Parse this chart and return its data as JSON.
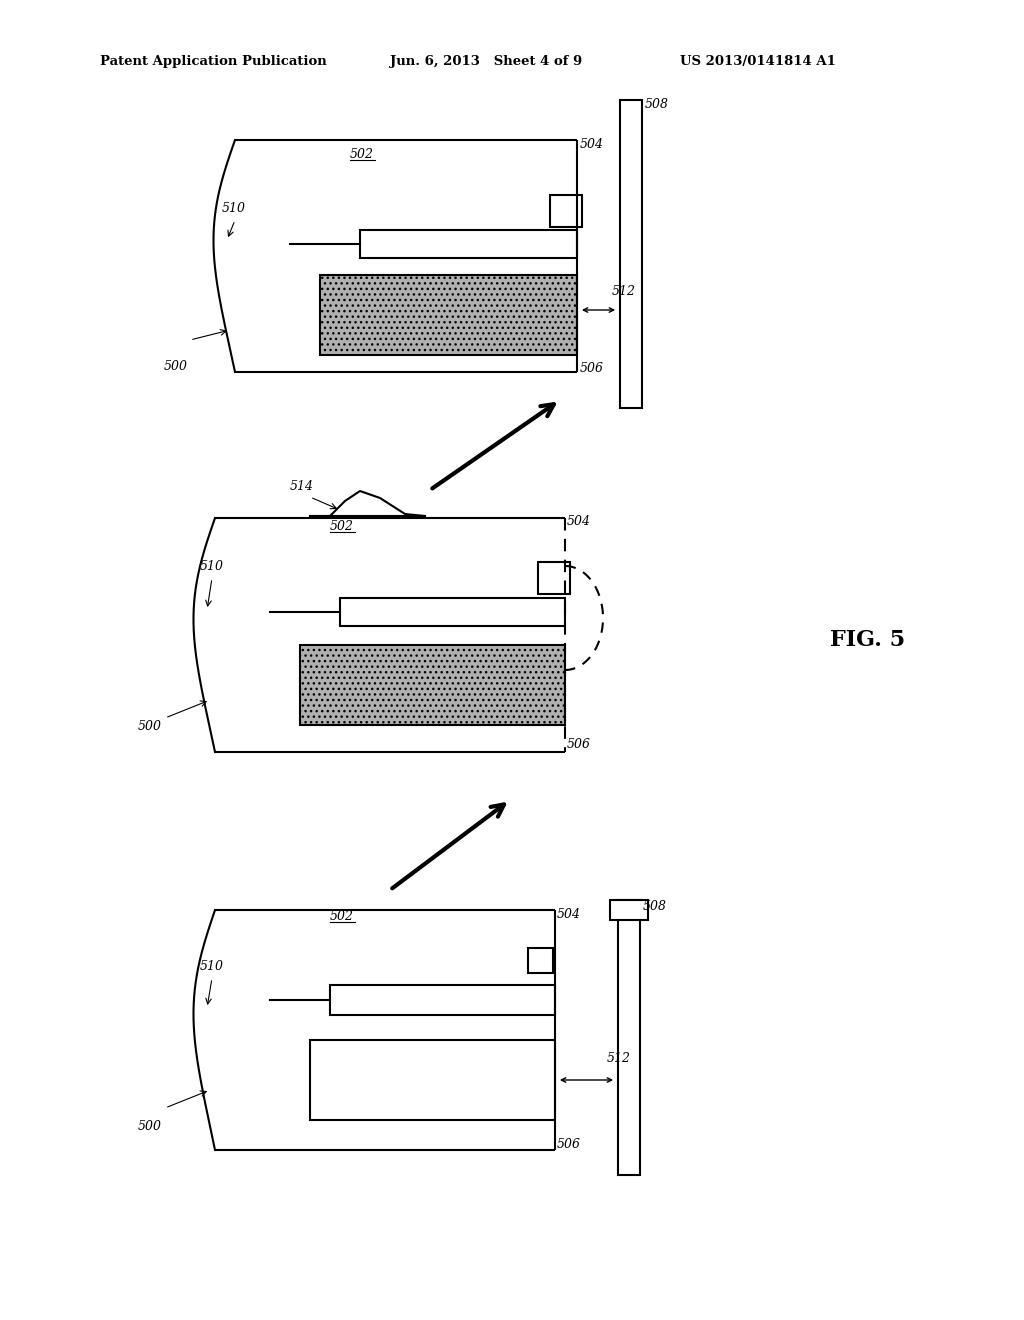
{
  "bg_color": "#ffffff",
  "header_left": "Patent Application Publication",
  "header_mid": "Jun. 6, 2013   Sheet 4 of 9",
  "header_right": "US 2013/0141814 A1",
  "fig_label": "FIG. 5",
  "line_color": "#000000",
  "gray_color": "#b0b0b0"
}
